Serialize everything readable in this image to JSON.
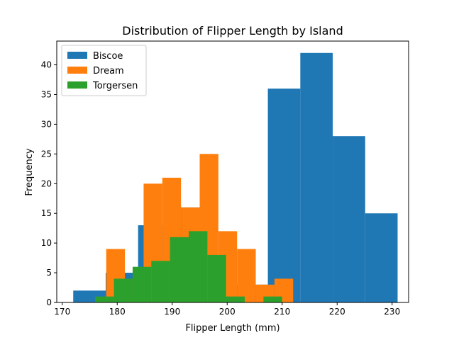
{
  "chart_data": {
    "type": "bar",
    "histogram": true,
    "title": "Distribution of Flipper Length by Island",
    "xlabel": "Flipper Length (mm)",
    "ylabel": "Frequency",
    "xlim": [
      169,
      233
    ],
    "ylim": [
      0,
      44
    ],
    "xticks": [
      170,
      180,
      190,
      200,
      210,
      220,
      230
    ],
    "yticks": [
      0,
      5,
      10,
      15,
      20,
      25,
      30,
      35,
      40
    ],
    "grid": false,
    "legend_position": "top-left",
    "series": [
      {
        "name": "Biscoe",
        "color": "#1f77b4",
        "bin_edges": [
          172.0,
          177.9,
          183.8,
          189.7,
          195.6,
          201.5,
          207.4,
          213.3,
          219.2,
          225.1,
          231.0
        ],
        "counts": [
          2,
          5,
          13,
          16,
          8,
          3,
          36,
          42,
          28,
          15
        ]
      },
      {
        "name": "Dream",
        "color": "#ff7f0e",
        "bin_edges": [
          178.0,
          181.4,
          184.8,
          188.2,
          191.6,
          195.0,
          198.4,
          201.8,
          205.2,
          208.6,
          212.0
        ],
        "counts": [
          9,
          4,
          20,
          21,
          16,
          25,
          12,
          9,
          3,
          4
        ]
      },
      {
        "name": "Torgersen",
        "color": "#2ca02c",
        "bin_edges": [
          176.0,
          179.4,
          182.8,
          186.2,
          189.6,
          193.0,
          196.4,
          199.8,
          203.2,
          206.6,
          210.0
        ],
        "counts": [
          1,
          4,
          6,
          7,
          11,
          12,
          8,
          1,
          0,
          1
        ]
      }
    ]
  }
}
